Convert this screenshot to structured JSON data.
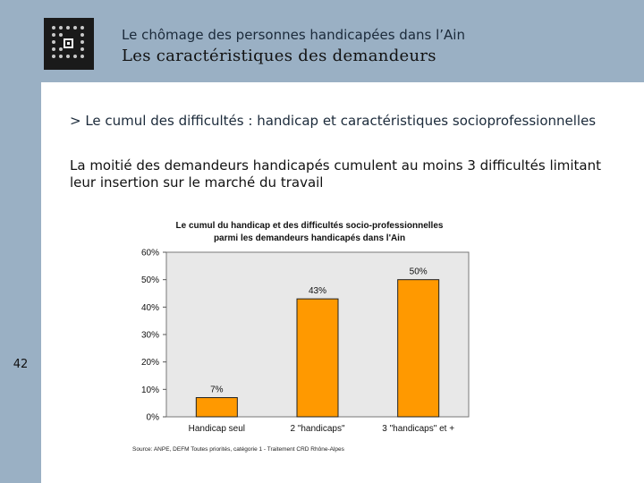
{
  "header": {
    "subtitle": "Le chômage des personnes handicapées dans l’Ain",
    "title": "Les caractéristiques des demandeurs"
  },
  "section": {
    "heading": "> Le cumul des difficultés : handicap et caractéristiques socioprofessionnelles",
    "body": "La moitié des demandeurs handicapés cumulent au moins 3 difficultés limitant leur insertion sur le marché du travail"
  },
  "page_number": "42",
  "colors": {
    "bar_fill": "#ff9900",
    "plot_bg": "#e8e8e8",
    "header_bg": "#9ab0c4"
  },
  "chart_data": {
    "type": "bar",
    "title": "Le cumul du handicap et des difficultés socio-professionnelles",
    "subtitle": "parmi les demandeurs handicapés dans l'Ain",
    "categories": [
      "Handicap seul",
      "2 \"handicaps\"",
      "3 \"handicaps\" et +"
    ],
    "values": [
      7,
      43,
      50
    ],
    "data_labels": [
      "7%",
      "43%",
      "50%"
    ],
    "ytick_labels": [
      "0%",
      "10%",
      "20%",
      "30%",
      "40%",
      "50%",
      "60%"
    ],
    "ylim": [
      0,
      60
    ],
    "grid": false,
    "source": "Source: ANPE, DEFM Toutes priorités, catégorie 1 - Traitement CRD Rhône-Alpes"
  }
}
